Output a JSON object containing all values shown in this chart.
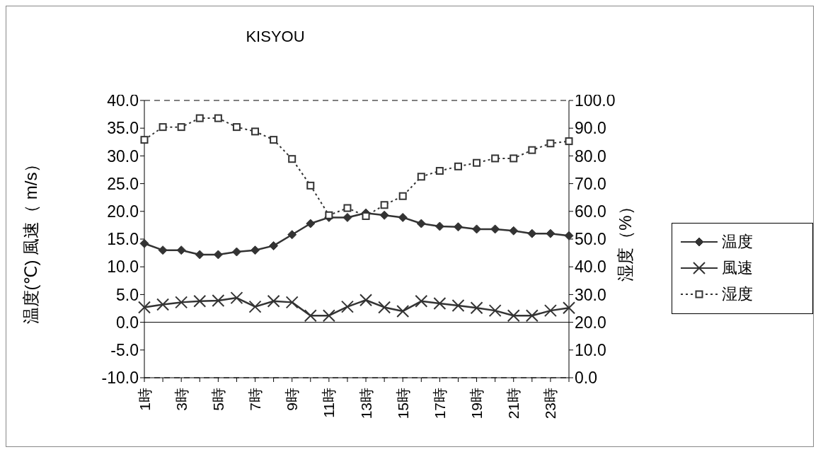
{
  "chart_data": {
    "type": "line",
    "title": "KISYOU",
    "ylabel": "温度(℃) 風速（ m/s）",
    "y2label": "湿度（%）",
    "categories": [
      "1時",
      null,
      "3時",
      null,
      "5時",
      null,
      "7時",
      null,
      "9時",
      null,
      "11時",
      null,
      "13時",
      null,
      "15時",
      null,
      "17時",
      null,
      "19時",
      null,
      "21時",
      null,
      "23時",
      null
    ],
    "series": [
      {
        "name": "温度",
        "color": "#333333",
        "marker": "diamond",
        "line_style": "solid",
        "values": [
          14.2,
          13.0,
          13.0,
          12.2,
          12.2,
          12.7,
          13.0,
          13.8,
          15.8,
          17.8,
          18.9,
          18.9,
          19.7,
          19.3,
          18.9,
          17.8,
          17.3,
          17.2,
          16.8,
          16.8,
          16.5,
          16.0,
          16.0,
          15.6
        ]
      },
      {
        "name": "風速",
        "color": "#333333",
        "marker": "cross",
        "line_style": "solid",
        "values": [
          2.7,
          3.2,
          3.6,
          3.8,
          3.9,
          4.4,
          2.8,
          3.8,
          3.6,
          1.2,
          1.2,
          2.8,
          4.0,
          2.7,
          2.0,
          3.8,
          3.4,
          3.0,
          2.6,
          2.1,
          1.2,
          1.2,
          2.1,
          2.6
        ]
      },
      {
        "name": "湿度",
        "color": "#333333",
        "marker": "square",
        "line_style": "dotted",
        "axis": "y2",
        "values": [
          85.8,
          90.4,
          90.4,
          93.6,
          93.6,
          90.4,
          88.8,
          85.8,
          78.9,
          69.3,
          58.6,
          61.2,
          58.3,
          62.3,
          65.5,
          72.5,
          74.6,
          76.2,
          77.5,
          79.1,
          79.1,
          82.1,
          84.5,
          85.3
        ]
      }
    ],
    "ylim": [
      -10,
      40
    ],
    "yticks": [
      {
        "value": 40,
        "label": "40.0"
      },
      {
        "value": 35,
        "label": "35.0"
      },
      {
        "value": 30,
        "label": "30.0"
      },
      {
        "value": 25,
        "label": "25.0"
      },
      {
        "value": 20,
        "label": "20.0"
      },
      {
        "value": 15,
        "label": "15.0"
      },
      {
        "value": 10,
        "label": "10.0"
      },
      {
        "value": 5,
        "label": "5.0"
      },
      {
        "value": 0,
        "label": "0.0"
      },
      {
        "value": -5,
        "label": "-5.0"
      },
      {
        "value": -10,
        "label": "-10.0"
      }
    ],
    "y2lim": [
      0,
      100
    ],
    "y2ticks": [
      {
        "value": 100,
        "label": "100.0"
      },
      {
        "value": 90,
        "label": "90.0"
      },
      {
        "value": 80,
        "label": "80.0"
      },
      {
        "value": 70,
        "label": "70.0"
      },
      {
        "value": 60,
        "label": "60.0"
      },
      {
        "value": 50,
        "label": "50.0"
      },
      {
        "value": 40,
        "label": "40.0"
      },
      {
        "value": 30,
        "label": "30.0"
      },
      {
        "value": 20,
        "label": "20.0"
      },
      {
        "value": 10,
        "label": "10.0"
      },
      {
        "value": 0,
        "label": "0.0"
      }
    ],
    "grid": "y",
    "legend": "right"
  }
}
